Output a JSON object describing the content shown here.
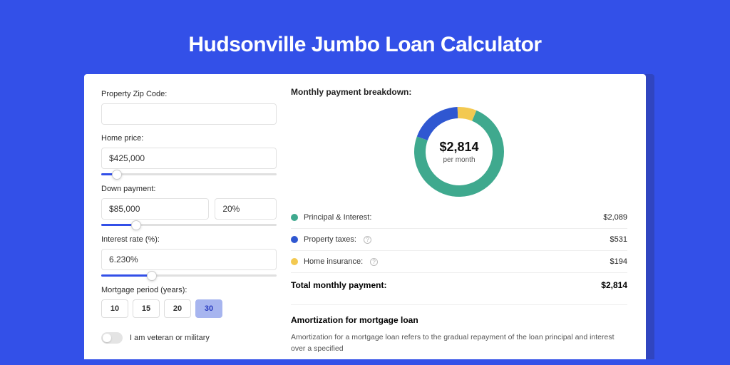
{
  "page": {
    "title": "Hudsonville Jumbo Loan Calculator",
    "background_color": "#3350e8",
    "shadow_color": "#3045c0"
  },
  "form": {
    "zip": {
      "label": "Property Zip Code:",
      "value": ""
    },
    "home_price": {
      "label": "Home price:",
      "value": "$425,000",
      "slider_pct": 9
    },
    "down_payment": {
      "label": "Down payment:",
      "amount": "$85,000",
      "pct": "20%",
      "slider_pct": 20
    },
    "interest_rate": {
      "label": "Interest rate (%):",
      "value": "6.230%",
      "slider_pct": 29
    },
    "mortgage_period": {
      "label": "Mortgage period (years):",
      "options": [
        "10",
        "15",
        "20",
        "30"
      ],
      "selected": "30"
    },
    "veteran": {
      "label": "I am veteran or military",
      "checked": false
    }
  },
  "breakdown": {
    "title": "Monthly payment breakdown:",
    "donut": {
      "center_amount": "$2,814",
      "center_sub": "per month",
      "slices": [
        {
          "name": "principal_interest",
          "value": 2089,
          "color": "#3fa98e"
        },
        {
          "name": "property_taxes",
          "value": 531,
          "color": "#2f57d1"
        },
        {
          "name": "home_insurance",
          "value": 194,
          "color": "#f3c951"
        }
      ],
      "ring_width": 16,
      "diameter": 126
    },
    "legend": [
      {
        "label": "Principal & Interest:",
        "value": "$2,089",
        "color": "#3fa98e",
        "help": false
      },
      {
        "label": "Property taxes:",
        "value": "$531",
        "color": "#2f57d1",
        "help": true
      },
      {
        "label": "Home insurance:",
        "value": "$194",
        "color": "#f3c951",
        "help": true
      }
    ],
    "total": {
      "label": "Total monthly payment:",
      "value": "$2,814"
    }
  },
  "amortization": {
    "title": "Amortization for mortgage loan",
    "text": "Amortization for a mortgage loan refers to the gradual repayment of the loan principal and interest over a specified"
  }
}
